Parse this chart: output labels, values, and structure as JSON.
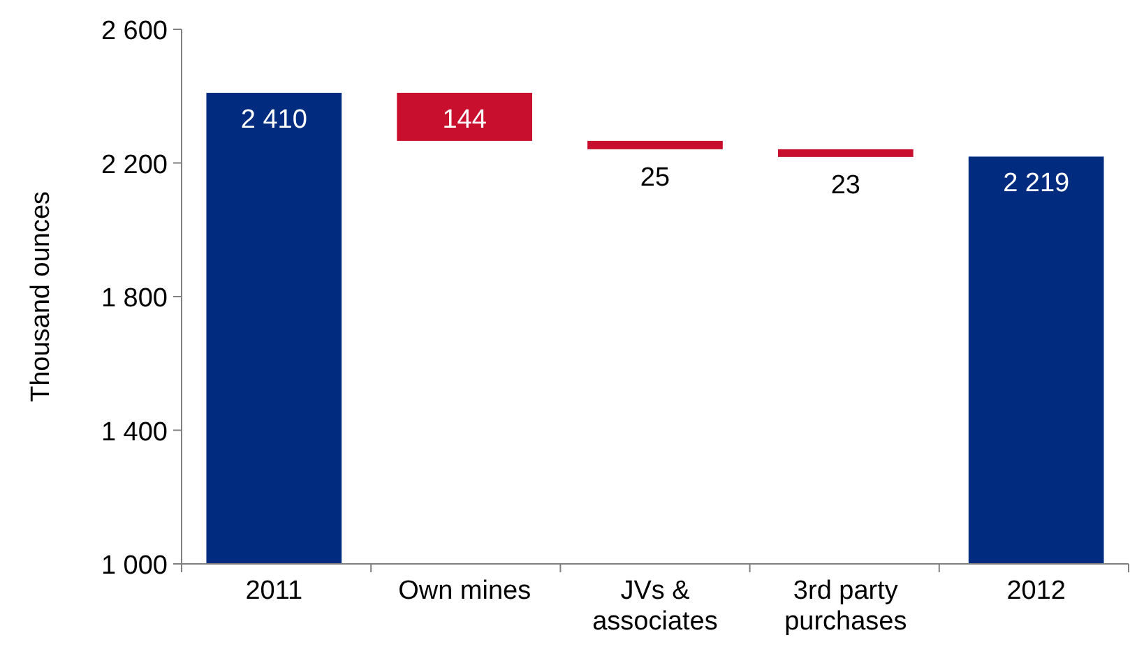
{
  "chart_data": {
    "type": "bar",
    "ylabel": "Thousand ounces",
    "categories": [
      "2011",
      "Own mines",
      "JVs & associates",
      "3rd party purchases",
      "2012"
    ],
    "base": [
      1000,
      2410,
      2266,
      2241,
      1000
    ],
    "values": [
      1410,
      -144,
      -25,
      -23,
      1219
    ],
    "value_labels": [
      "2 410",
      "144",
      "25",
      "23",
      "2 219"
    ],
    "colors": [
      "#002b7f",
      "#c8102e",
      "#c8102e",
      "#c8102e",
      "#002b7f"
    ],
    "ylim": [
      1000,
      2600
    ],
    "yticks": [
      {
        "value": 1000,
        "label": "1 000"
      },
      {
        "value": 1400,
        "label": "1 400"
      },
      {
        "value": 1800,
        "label": "1 800"
      },
      {
        "value": 2200,
        "label": "2 200"
      },
      {
        "value": 2600,
        "label": "2 600"
      }
    ],
    "grid": false
  }
}
